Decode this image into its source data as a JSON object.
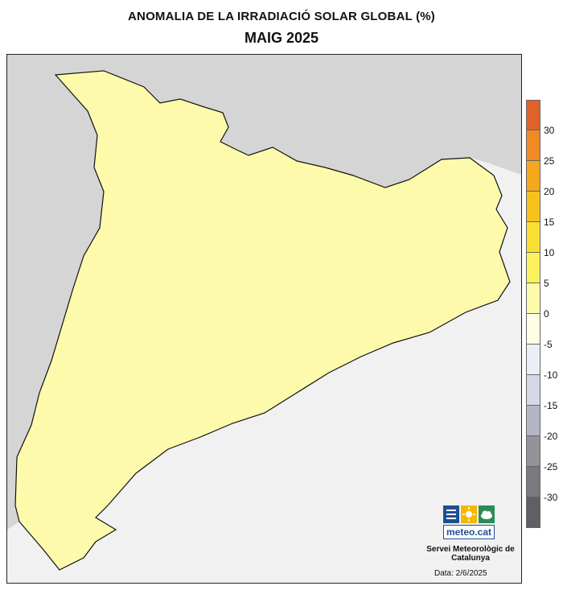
{
  "title": "ANOMALIA DE LA IRRADIACIÓ SOLAR GLOBAL (%)",
  "subtitle": "MAIG 2025",
  "legend": {
    "labels": [
      "30",
      "25",
      "20",
      "15",
      "10",
      "5",
      "0",
      "-5",
      "-10",
      "-15",
      "-20",
      "-25",
      "-30"
    ],
    "colors": [
      "#e0622a",
      "#f08a24",
      "#f4a81d",
      "#f7c21c",
      "#fbe033",
      "#fcf25d",
      "#fdfbab",
      "#fefee6",
      "#eceef6",
      "#d6d8e7",
      "#b4b6c4",
      "#939399",
      "#797980",
      "#5f5f66"
    ]
  },
  "map": {
    "anomaly_colors": {
      "near_zero": "#fdfbab",
      "minus_5": "#eceef6",
      "plus_5": "#fcf25d"
    },
    "sea_color": "#f1f1f1",
    "terrain_color": "#d5d5d5",
    "border_color": "#111111"
  },
  "logo": {
    "text": "meteo.cat"
  },
  "organization": "Servei Meteorològic de Catalunya",
  "date": "Data: 2/6/2025"
}
